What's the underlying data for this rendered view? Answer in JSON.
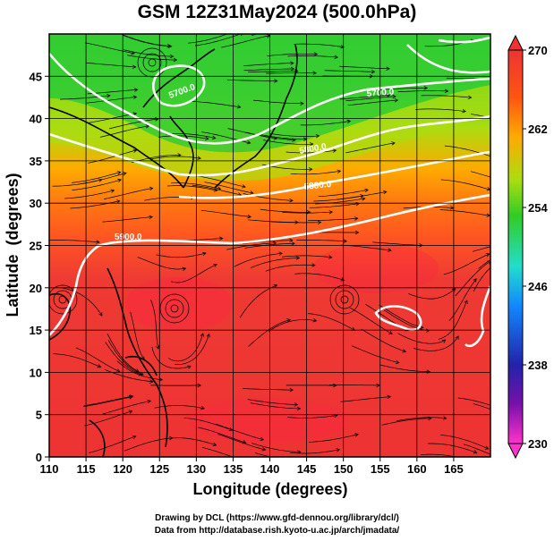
{
  "title": "GSM 12Z31May2024 (500.0hPa)",
  "x_axis": {
    "label": "Longitude (degrees)",
    "range": [
      110,
      170
    ],
    "ticks": [
      "110",
      "115",
      "120",
      "125",
      "130",
      "135",
      "140",
      "145",
      "150",
      "155",
      "160",
      "165"
    ]
  },
  "y_axis": {
    "label": "Latitude  (degrees)",
    "range": [
      0,
      50
    ],
    "ticks": [
      "0",
      "5",
      "10",
      "15",
      "20",
      "25",
      "30",
      "35",
      "40",
      "45"
    ]
  },
  "colorbar": {
    "labels": [
      "270",
      "262",
      "254",
      "246",
      "238",
      "230"
    ],
    "range": [
      230,
      270
    ],
    "colors": [
      "#ff33cc",
      "#2222aa",
      "#1188ff",
      "#22ddcc",
      "#33cc22",
      "#aadd11",
      "#ffaa00",
      "#ff5511",
      "#ee3333"
    ]
  },
  "contours": [
    {
      "label": "5700.0"
    },
    {
      "label": "5800.0"
    },
    {
      "label": "5880.0"
    },
    {
      "label": "5900.0"
    }
  ],
  "credits": {
    "line1": "Drawing by DCL (https://www.gfd-dennou.org/library/dcl/)",
    "line2": "Data from http://database.rish.kyoto-u.ac.jp/arch/jmadata/"
  }
}
